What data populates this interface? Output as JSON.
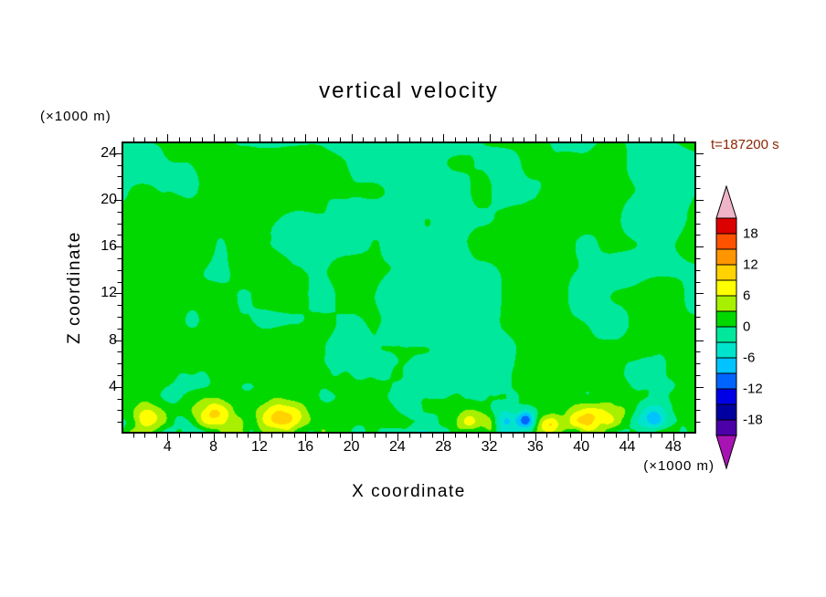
{
  "title": "vertical velocity",
  "time_label": "t=187200 s",
  "x_axis": {
    "label": "X coordinate",
    "unit_label": "(×1000 m)",
    "min": 0,
    "max": 50,
    "tick_values": [
      4,
      8,
      12,
      16,
      20,
      24,
      28,
      32,
      36,
      40,
      44,
      48
    ],
    "tick_labels": [
      "4",
      "8",
      "12",
      "16",
      "20",
      "24",
      "28",
      "32",
      "36",
      "40",
      "44",
      "48"
    ],
    "minor_tick_step": 1
  },
  "z_axis": {
    "label": "Z coordinate",
    "unit_label": "(×1000 m)",
    "min": 0,
    "max": 25,
    "tick_values": [
      4,
      8,
      12,
      16,
      20,
      24
    ],
    "tick_labels": [
      "4",
      "8",
      "12",
      "16",
      "20",
      "24"
    ],
    "minor_tick_step": 1
  },
  "colorbar": {
    "labels": [
      "18",
      "12",
      "6",
      "0",
      "-6",
      "-12",
      "-18"
    ],
    "label_values": [
      18,
      12,
      6,
      0,
      -6,
      -12,
      -18
    ],
    "level_min": -21,
    "level_max": 21,
    "level_step": 3,
    "bands_top_to_bottom": [
      {
        "min": 18,
        "max": 21,
        "color": "#dc0000"
      },
      {
        "min": 15,
        "max": 18,
        "color": "#ff5200"
      },
      {
        "min": 12,
        "max": 15,
        "color": "#ff9600"
      },
      {
        "min": 9,
        "max": 12,
        "color": "#ffd200"
      },
      {
        "min": 6,
        "max": 9,
        "color": "#ffff00"
      },
      {
        "min": 3,
        "max": 6,
        "color": "#a8f000"
      },
      {
        "min": 0,
        "max": 3,
        "color": "#00d800"
      },
      {
        "min": -3,
        "max": 0,
        "color": "#00e89b"
      },
      {
        "min": -6,
        "max": -3,
        "color": "#00e4cd"
      },
      {
        "min": -9,
        "max": -6,
        "color": "#00c3ff"
      },
      {
        "min": -12,
        "max": -9,
        "color": "#0064ff"
      },
      {
        "min": -15,
        "max": -12,
        "color": "#0000e6"
      },
      {
        "min": -18,
        "max": -15,
        "color": "#0000a0"
      },
      {
        "min": -21,
        "max": -18,
        "color": "#4b00a8"
      }
    ],
    "over_arrow_color": "#f0b4c8",
    "under_arrow_color": "#a814b4"
  },
  "colors": {
    "axis": "#000000",
    "text": "#000000",
    "time_text": "#8b2500",
    "background_green": "#00d800",
    "background_mint": "#00e89b"
  },
  "chart_data": {
    "type": "heatmap",
    "title": "vertical velocity",
    "xlabel": "X coordinate (×1000 m)",
    "ylabel": "Z coordinate (×1000 m)",
    "time_annotation": "t=187200 s",
    "x_range": [
      0,
      50
    ],
    "z_range": [
      0,
      25
    ],
    "value_levels": [
      -21,
      -18,
      -15,
      -12,
      -9,
      -6,
      -3,
      0,
      3,
      6,
      9,
      12,
      15,
      18,
      21
    ],
    "labeled_levels": [
      18,
      12,
      6,
      0,
      -6,
      -12,
      -18
    ],
    "contour_interval": 3,
    "background_description": "Weak vertical-velocity fluctuations between -3 and +3 fill most of the domain (two alternating green shades); fine-grained boundary-layer turbulence below z ≈ 4 km; strong localized updraft (yellow) and downdraft (cyan/blue) cells along the bottom boundary",
    "features": [
      {
        "kind": "updraft",
        "x": 2.3,
        "z": 1.2,
        "sx": 1.1,
        "sz": 0.9,
        "amp": 9
      },
      {
        "kind": "updraft",
        "x": 7.8,
        "z": 1.4,
        "sx": 1.3,
        "sz": 1.0,
        "amp": 10
      },
      {
        "kind": "updraft",
        "x": 14.0,
        "z": 1.3,
        "sx": 1.6,
        "sz": 1.0,
        "amp": 10
      },
      {
        "kind": "updraft",
        "x": 30.8,
        "z": 0.9,
        "sx": 1.2,
        "sz": 0.7,
        "amp": 6
      },
      {
        "kind": "updraft",
        "x": 37.3,
        "z": 0.6,
        "sx": 0.7,
        "sz": 0.5,
        "amp": 6
      },
      {
        "kind": "updraft",
        "x": 41.0,
        "z": 1.2,
        "sx": 1.8,
        "sz": 0.9,
        "amp": 9
      },
      {
        "kind": "downdraft",
        "x": 33.6,
        "z": 0.9,
        "sx": 0.9,
        "sz": 0.7,
        "amp": -7
      },
      {
        "kind": "downdraft",
        "x": 35.3,
        "z": 1.0,
        "sx": 0.55,
        "sz": 0.6,
        "amp": -11
      },
      {
        "kind": "downdraft",
        "x": 46.3,
        "z": 1.1,
        "sx": 0.9,
        "sz": 0.8,
        "amp": -8
      }
    ],
    "field_model": {
      "seed": 7.31,
      "mid_amp1": 1.7,
      "mid_len1": 5.2,
      "mid_amp2": 0.95,
      "mid_len2": 2.3,
      "sfc_amp": 2.9,
      "sfc_len": 1.05,
      "sfc_decay": 2.0
    }
  }
}
